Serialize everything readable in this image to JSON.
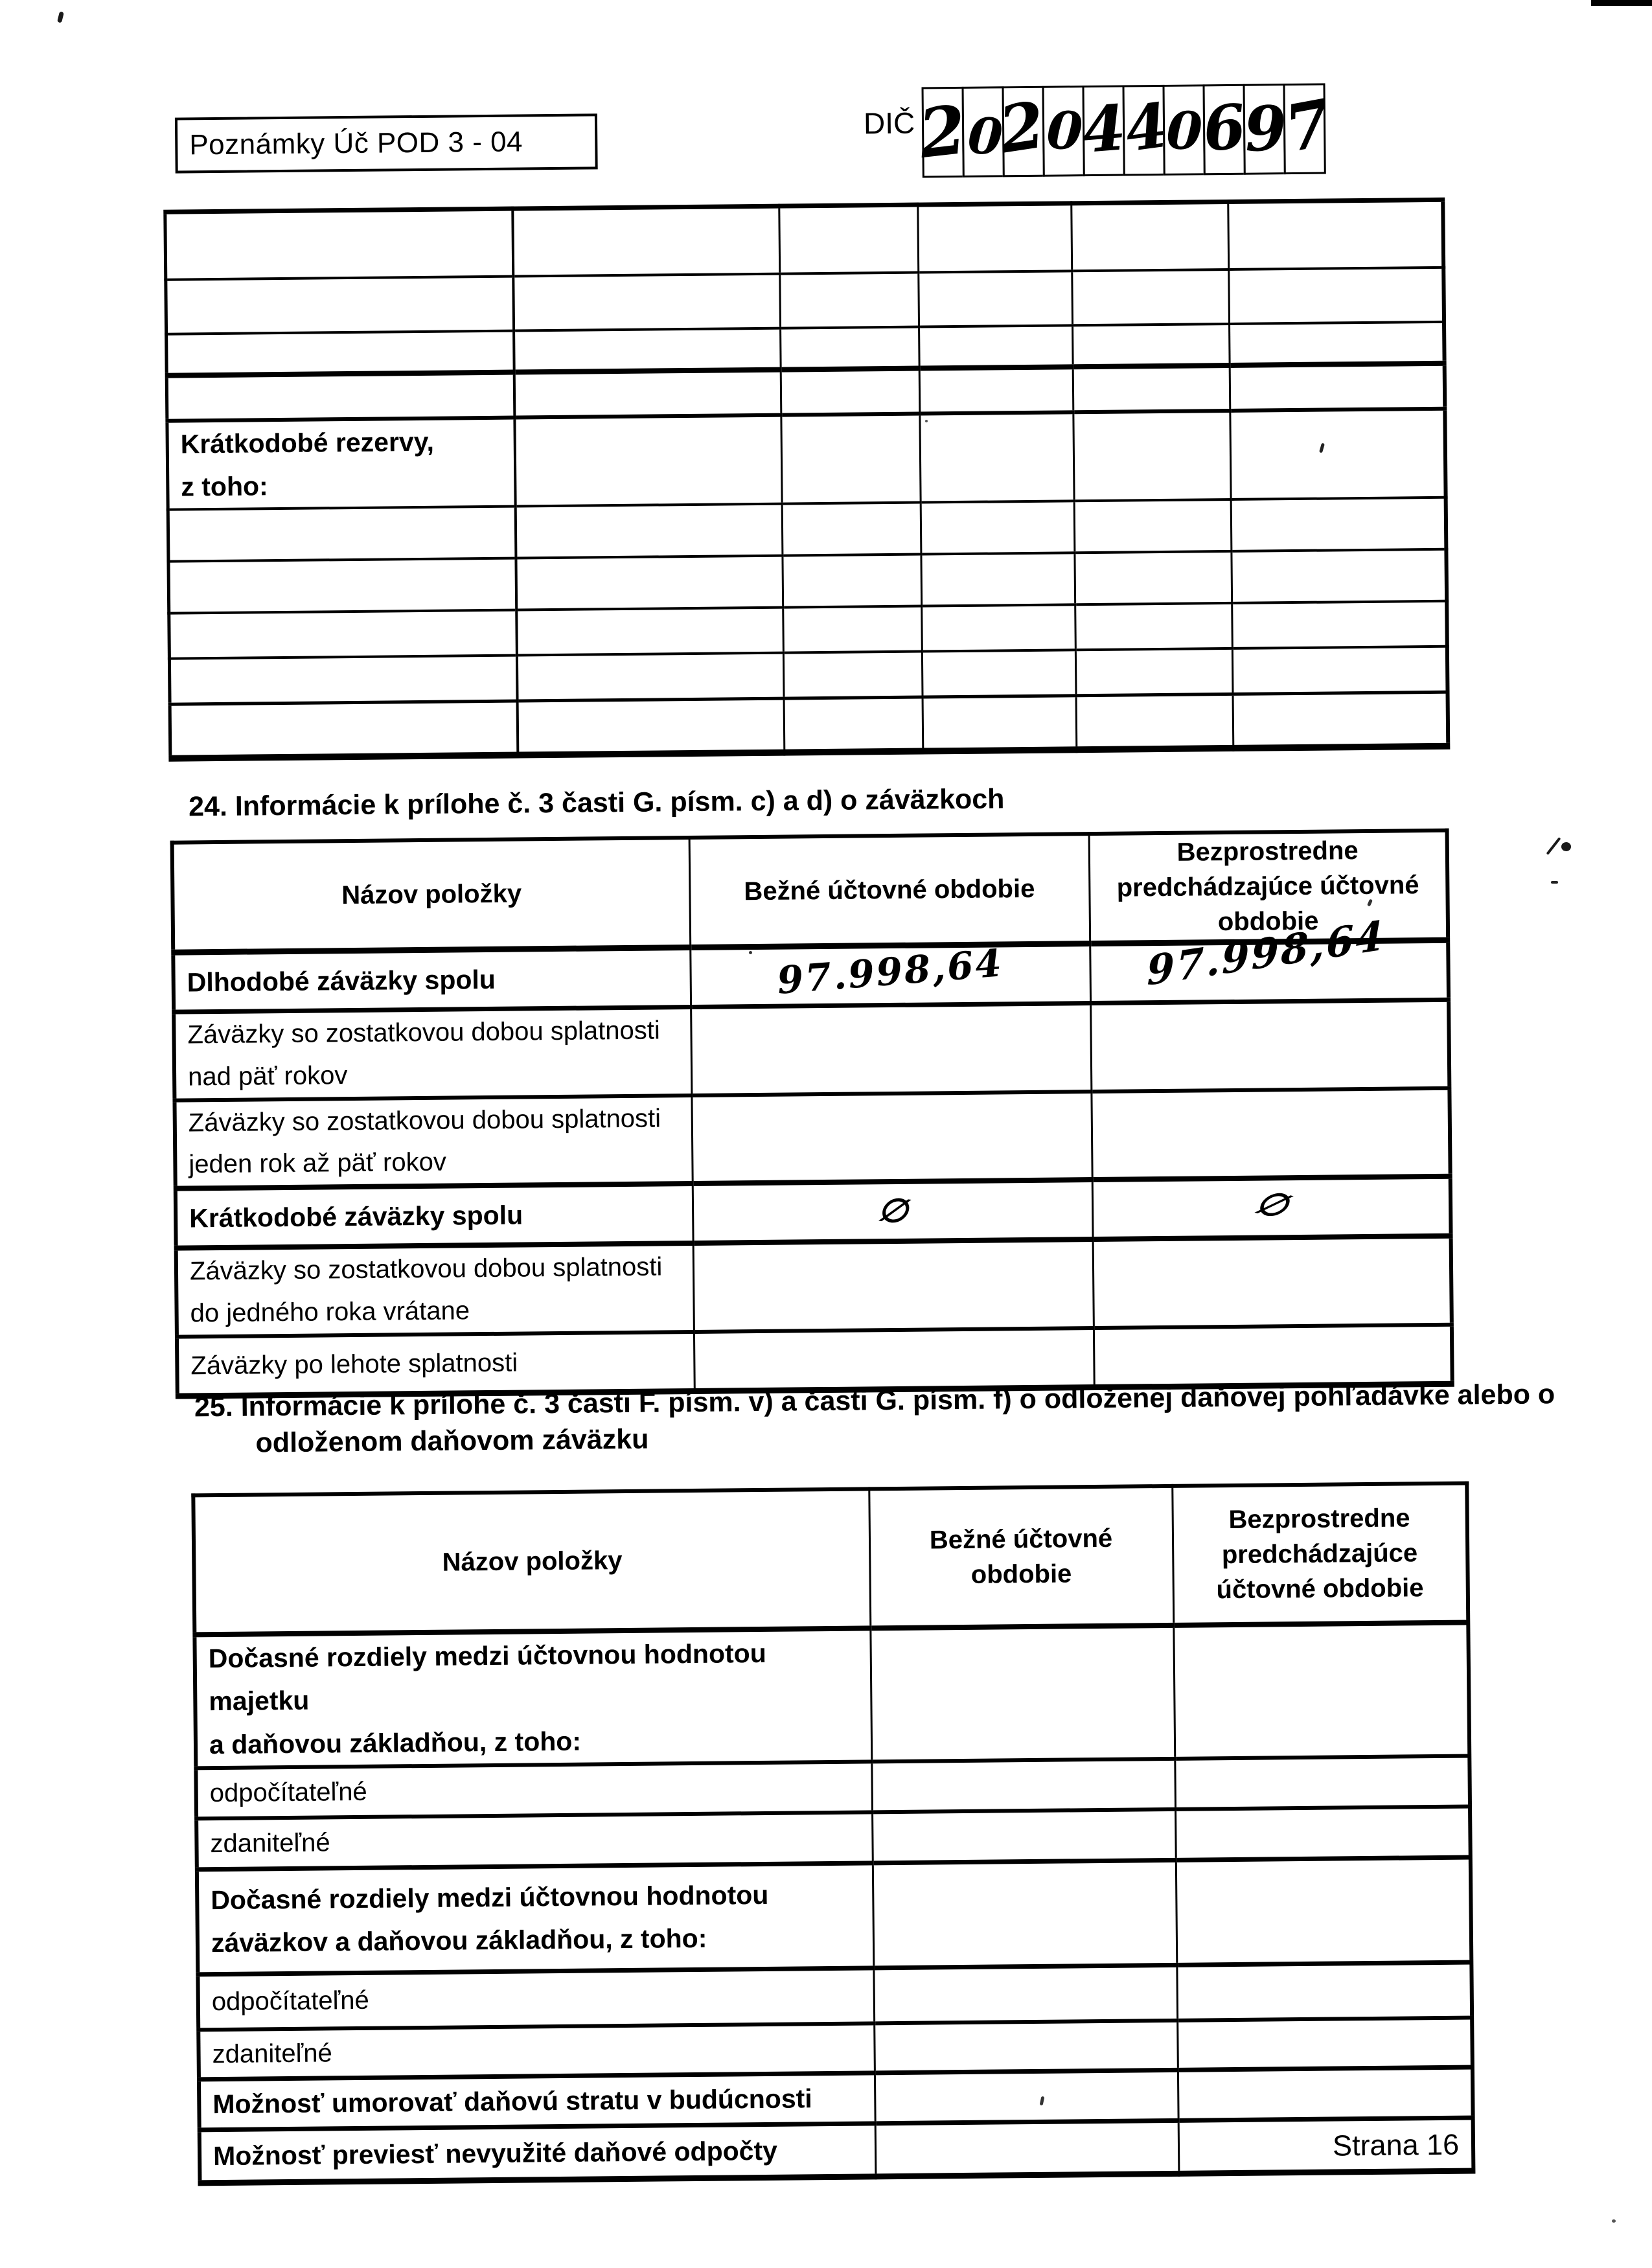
{
  "page": {
    "form_code": "Poznámky Úč POD 3 - 04",
    "dic_label": "DIČ",
    "dic_digits": [
      "2",
      "0",
      "2",
      "0",
      "4",
      "4",
      "0",
      "6",
      "9",
      "7"
    ],
    "footer_page": "Strana 16"
  },
  "reserves_table": {
    "row_label": "Krátkodobé rezervy,\nz toho:"
  },
  "section24": {
    "title": "24. Informácie k prílohe č. 3 časti G. písm. c) a d) o záväzkoch",
    "headers": [
      "Názov položky",
      "Bežné účtovné obdobie",
      "Bezprostredne\npredchádzajúce účtovné\nobdobie"
    ],
    "rows": [
      {
        "label": "Dlhodobé záväzky spolu",
        "bold": true,
        "current": "97.998,64",
        "previous": "97.998,64",
        "hw": true
      },
      {
        "label": "Záväzky so zostatkovou dobou splatnosti\nnad päť rokov",
        "bold": false,
        "current": "",
        "previous": "",
        "hw": false
      },
      {
        "label": "Záväzky so zostatkovou dobou splatnosti\njeden rok až päť rokov",
        "bold": false,
        "current": "",
        "previous": "",
        "hw": false
      },
      {
        "label": "Krátkodobé záväzky spolu",
        "bold": true,
        "current": "∅",
        "previous": "∅",
        "hw": true
      },
      {
        "label": "Záväzky so zostatkovou dobou splatnosti\ndo jedného roka vrátane",
        "bold": false,
        "current": "",
        "previous": "",
        "hw": false
      },
      {
        "label": "Záväzky po lehote splatnosti",
        "bold": false,
        "current": "",
        "previous": "",
        "hw": false
      }
    ]
  },
  "section25": {
    "title_line1": "25. Informácie k prílohe č. 3 časti F. písm. v) a časti G. písm. f) o odloženej daňovej pohľadávke alebo o",
    "title_line2": "odloženom daňovom záväzku",
    "headers": [
      "Názov položky",
      "Bežné účtovné\nobdobie",
      "Bezprostredne\npredchádzajúce\núčtovné obdobie"
    ],
    "rows": [
      {
        "label": "Dočasné rozdiely medzi účtovnou hodnotou majetku\na daňovou základňou, z toho:",
        "bold": true
      },
      {
        "label": "odpočítateľné",
        "bold": false
      },
      {
        "label": "zdaniteľné",
        "bold": false
      },
      {
        "label": "Dočasné rozdiely medzi účtovnou hodnotou\nzáväzkov a daňovou základňou, z toho:",
        "bold": true
      },
      {
        "label": "odpočítateľné",
        "bold": false
      },
      {
        "label": "zdaniteľné",
        "bold": false
      },
      {
        "label": "Možnosť umorovať daňovú stratu v budúcnosti",
        "bold": true
      },
      {
        "label": "Možnosť previesť nevyužité daňové odpočty",
        "bold": true
      }
    ]
  }
}
